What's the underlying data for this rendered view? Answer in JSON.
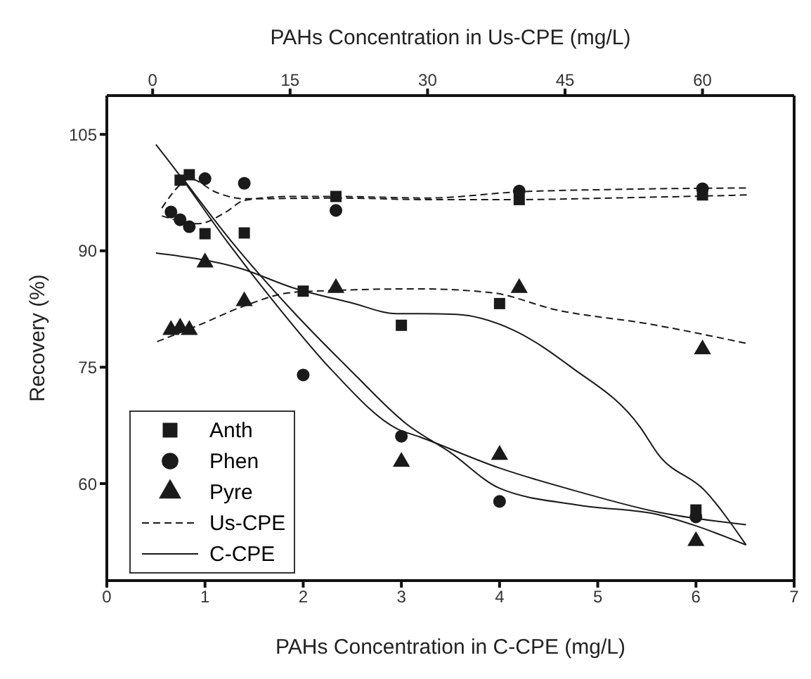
{
  "chart_data": {
    "type": "scatter",
    "xlabel": "PAHs Concentration in C-CPE (mg/L)",
    "x2label": "PAHs Concentration in Us-CPE (mg/L)",
    "ylabel": "Recovery (%)",
    "xlim": [
      0,
      7
    ],
    "xticks": [
      0,
      1,
      2,
      3,
      4,
      5,
      6,
      7
    ],
    "x2lim": [
      -5,
      70
    ],
    "x2ticks": [
      0,
      15,
      30,
      45,
      60
    ],
    "ylim": [
      47.5,
      110
    ],
    "yticks": [
      60,
      75,
      90,
      105
    ],
    "grid": false,
    "legend": "bottom left",
    "series": [
      {
        "name": "Anth",
        "marker": "square",
        "color": "#1a1a1a",
        "x": [
          1,
          2,
          3,
          4,
          6
        ],
        "values": [
          92.2,
          84.8,
          80.4,
          83.2,
          56.6
        ]
      },
      {
        "name": "Phen",
        "marker": "circle",
        "color": "#1a1a1a",
        "x": [
          1,
          2,
          3,
          4,
          6
        ],
        "values": [
          99.3,
          74.0,
          66.1,
          57.7,
          55.7
        ]
      },
      {
        "name": "Pyre",
        "marker": "triangle",
        "color": "#1a1a1a",
        "x": [
          1,
          3,
          4,
          6
        ],
        "values": [
          88.5,
          62.8,
          63.7,
          52.6
        ]
      },
      {
        "marker": "square",
        "axis": "x2",
        "color": "#1a1a1a",
        "x": [
          3,
          4,
          10,
          20,
          40,
          60
        ],
        "values": [
          99.1,
          99.8,
          92.3,
          97.0,
          96.6,
          97.2
        ]
      },
      {
        "marker": "circle",
        "axis": "x2",
        "color": "#1a1a1a",
        "x": [
          2,
          3,
          4,
          10,
          20,
          40,
          60
        ],
        "values": [
          95.0,
          94.0,
          93.1,
          98.7,
          95.2,
          97.7,
          98.0
        ]
      },
      {
        "marker": "triangle",
        "axis": "x2",
        "color": "#1a1a1a",
        "x": [
          2,
          3,
          4,
          10,
          20,
          40,
          60
        ],
        "values": [
          79.8,
          80.1,
          79.8,
          83.5,
          85.2,
          85.2,
          77.3
        ]
      },
      {
        "name": "Us-CPE",
        "type": "line",
        "marker": "none",
        "line_style": "dashed",
        "axis": "x2",
        "color": "#1a1a1a",
        "x": [
          1,
          3,
          4,
          7,
          10,
          20,
          30,
          40,
          50,
          65
        ],
        "values": [
          95.5,
          98.5,
          99.3,
          97.5,
          96.7,
          96.8,
          96.6,
          96.6,
          96.8,
          97.2
        ]
      },
      {
        "type": "line",
        "marker": "none",
        "line_style": "dashed",
        "axis": "x2",
        "color": "#1a1a1a",
        "x": [
          1,
          5,
          8,
          10,
          15,
          20,
          30,
          40,
          50,
          65
        ],
        "values": [
          94.5,
          93.5,
          95,
          96.5,
          97,
          97,
          96.8,
          97.6,
          97.9,
          98.1
        ]
      },
      {
        "type": "line",
        "marker": "none",
        "line_style": "dashed",
        "axis": "x2",
        "color": "#1a1a1a",
        "x": [
          0.5,
          5,
          10,
          15,
          20,
          29,
          37,
          44,
          54,
          64.7
        ],
        "values": [
          78.3,
          80.4,
          82.9,
          84.6,
          84.9,
          85.1,
          84.6,
          82.4,
          80.6,
          78.1
        ]
      },
      {
        "name": "C-CPE",
        "type": "line",
        "marker": "none",
        "line_style": "solid",
        "color": "#1a1a1a",
        "x": [
          0.5,
          1.37,
          1.88,
          2.49,
          2.95,
          3.19,
          3.56,
          4.12,
          4.73,
          5.43,
          5.62,
          6.09,
          6.51
        ],
        "values": [
          89.7,
          87.7,
          85.3,
          83.3,
          81.9,
          81.9,
          81.8,
          79.9,
          75.0,
          67.3,
          63.7,
          59.1,
          52.1
        ]
      },
      {
        "type": "line",
        "marker": "none",
        "line_style": "solid",
        "color": "#1a1a1a",
        "x": [
          0.5,
          0.69,
          1.23,
          1.69,
          2.3,
          2.95,
          3.19,
          4.0,
          4.82,
          5.62,
          6.51
        ],
        "values": [
          103.7,
          100.6,
          91.1,
          83.6,
          74.5,
          67.1,
          66.0,
          62.0,
          58.9,
          56.3,
          54.7
        ]
      },
      {
        "type": "line",
        "marker": "none",
        "line_style": "solid",
        "color": "#1a1a1a",
        "x": [
          0.8,
          1.27,
          1.88,
          2.49,
          3.05,
          3.5,
          4.0,
          4.82,
          5.62,
          5.99,
          6.51
        ],
        "values": [
          98.9,
          91.2,
          82.4,
          74.5,
          67.7,
          64.0,
          59.4,
          57.2,
          56.0,
          54.6,
          52.1
        ]
      }
    ]
  }
}
